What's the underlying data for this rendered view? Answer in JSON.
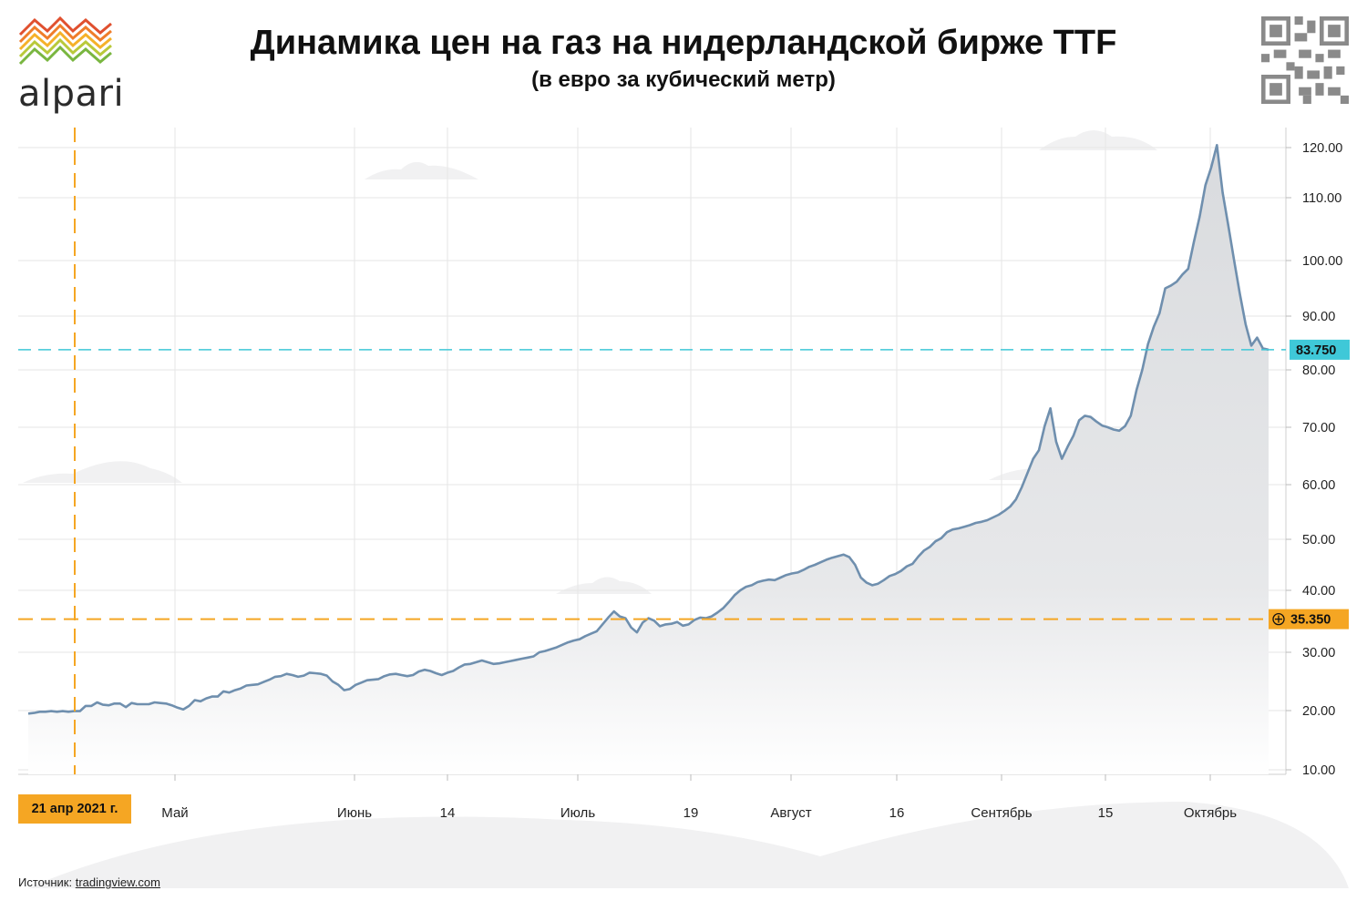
{
  "brand": {
    "name": "alpari"
  },
  "header": {
    "title": "Динамика цен на газ на нидерландской бирже TTF",
    "subtitle": "(в евро за кубический метр)"
  },
  "source": {
    "label": "Источник:",
    "link": "tradingview.com"
  },
  "colors": {
    "line": "#6f8fae",
    "area": "#dfe1e4",
    "current_price": "#3fc8d8",
    "marker": "#f5a623",
    "grid": "#e6e6e6"
  },
  "chart_data": {
    "type": "area",
    "y_ticks": [
      "120.00",
      "110.00",
      "100.00",
      "90.00",
      "80.00",
      "70.00",
      "60.00",
      "50.00",
      "40.00",
      "30.00",
      "20.00",
      "10.00"
    ],
    "x_ticks": [
      "Май",
      "Июнь",
      "14",
      "Июль",
      "19",
      "Август",
      "16",
      "Сентябрь",
      "15",
      "Октябрь"
    ],
    "ylim": [
      10,
      125
    ],
    "grid": true,
    "current_price": {
      "label": "83.750",
      "value": 83.75
    },
    "marked_price": {
      "label": "35.350",
      "value": 35.35
    },
    "marked_date": {
      "label": "21 апр 2021 г."
    },
    "series": [
      {
        "values": [
          19.5,
          19.6,
          19.8,
          19.8,
          19.9,
          19.8,
          19.9,
          19.8,
          19.9,
          19.9,
          20.8,
          20.8,
          21.4,
          21.0,
          20.9,
          21.2,
          21.2,
          20.6,
          21.3,
          21.1,
          21.1,
          21.1,
          21.4,
          21.3,
          21.2,
          20.9,
          20.5,
          20.2,
          20.8,
          21.8,
          21.6,
          22.1,
          22.4,
          22.4,
          23.3,
          23.1,
          23.5,
          23.8,
          24.3,
          24.4,
          24.5,
          24.9,
          25.3,
          25.8,
          25.9,
          26.3,
          26.1,
          25.8,
          26.0,
          26.5,
          26.4,
          26.3,
          26.0,
          25.0,
          24.4,
          23.5,
          23.7,
          24.4,
          24.8,
          25.2,
          25.3,
          25.4,
          25.9,
          26.2,
          26.3,
          26.1,
          25.9,
          26.1,
          26.7,
          27.0,
          26.8,
          26.4,
          26.1,
          26.5,
          26.8,
          27.4,
          27.9,
          28.0,
          28.3,
          28.6,
          28.3,
          28.0,
          28.1,
          28.3,
          28.5,
          28.7,
          28.9,
          29.1,
          29.3,
          30.0,
          30.2,
          30.5,
          30.8,
          31.2,
          31.6,
          31.9,
          32.1,
          32.6,
          33.0,
          33.4,
          34.5,
          35.6,
          36.6,
          35.8,
          35.5,
          34.0,
          33.2,
          34.8,
          35.5,
          35.1,
          34.2,
          34.5,
          34.6,
          34.9,
          34.3,
          34.5,
          35.2,
          35.6,
          35.5,
          35.8,
          36.4,
          37.1,
          38.1,
          39.2,
          40.0,
          40.7,
          41.0,
          41.6,
          41.9,
          42.1,
          42.0,
          42.5,
          43.0,
          43.3,
          43.5,
          44.0,
          44.6,
          45.0,
          45.5,
          46.0,
          46.4,
          46.7,
          47.0,
          46.5,
          45.0,
          42.5,
          41.5,
          41.0,
          41.3,
          42.0,
          42.8,
          43.2,
          43.8,
          44.7,
          45.2,
          46.6,
          47.8,
          48.5,
          49.6,
          50.2,
          51.3,
          51.8,
          52.0,
          52.3,
          52.6,
          53.0,
          53.2,
          53.5,
          54.0,
          54.5,
          55.2,
          56.0,
          57.3,
          59.5,
          62.0,
          64.5,
          66.0,
          70.2,
          73.3,
          67.5,
          64.5,
          66.6,
          68.5,
          71.2,
          72.0,
          71.8,
          71.0,
          70.3,
          70.0,
          69.6,
          69.4,
          70.2,
          72.0,
          76.5,
          80.0,
          84.8,
          88.0,
          90.5,
          95.0,
          95.5,
          96.2,
          97.5,
          98.5,
          103.0,
          107.0,
          112.5,
          116.0,
          120.5,
          111.0,
          105.5,
          100.0,
          94.0,
          88.5,
          84.5,
          86.0,
          84.0,
          83.75
        ]
      }
    ]
  }
}
